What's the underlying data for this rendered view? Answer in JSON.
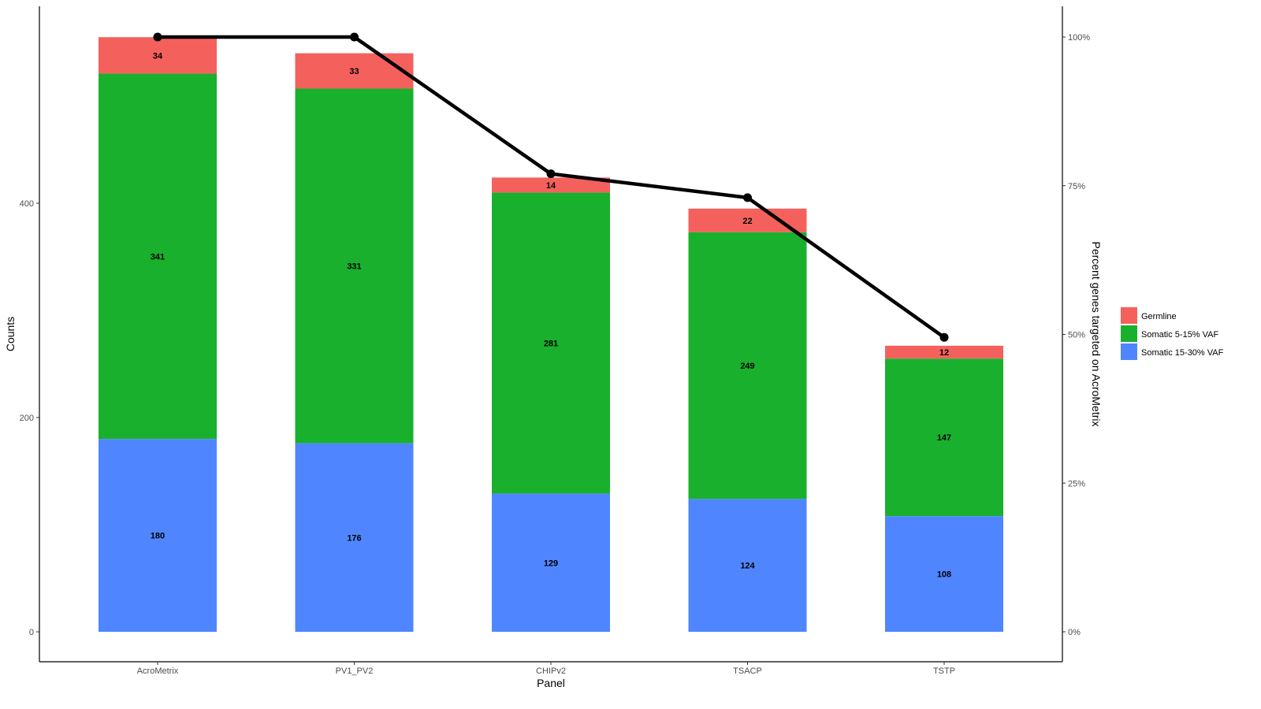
{
  "chart_data": {
    "type": "bar",
    "stacked": true,
    "categories": [
      "AcroMetrix",
      "PV1_PV2",
      "CHIPv2",
      "TSACP",
      "TSTP"
    ],
    "series": [
      {
        "name": "Somatic 15-30% VAF",
        "color": "#4f86ff",
        "values": [
          180,
          176,
          129,
          124,
          108
        ]
      },
      {
        "name": "Somatic 5-15% VAF",
        "color": "#19b02e",
        "values": [
          341,
          331,
          281,
          249,
          147
        ]
      },
      {
        "name": "Germline",
        "color": "#f4615c",
        "values": [
          34,
          33,
          14,
          22,
          12
        ]
      }
    ],
    "line": {
      "color": "#000000",
      "values": [
        100,
        100,
        77,
        73,
        49.5
      ],
      "axis": "right"
    },
    "xlabel": "Panel",
    "ylabel": "Counts",
    "y2label": "Percent genes targeted on AcroMetrix",
    "ylim": [
      0,
      580
    ],
    "yticks": [
      0,
      200,
      400
    ],
    "ytick_labels": [
      "0",
      "200",
      "400"
    ],
    "y2lim": [
      -5,
      105
    ],
    "y2ticks": [
      0,
      25,
      50,
      75,
      100
    ],
    "y2tick_labels": [
      "0%",
      "25%",
      "50%",
      "75%",
      "100%"
    ],
    "grid": false,
    "legend_placement": "right",
    "legend_order": [
      "Germline",
      "Somatic 5-15% VAF",
      "Somatic 15-30% VAF"
    ]
  }
}
